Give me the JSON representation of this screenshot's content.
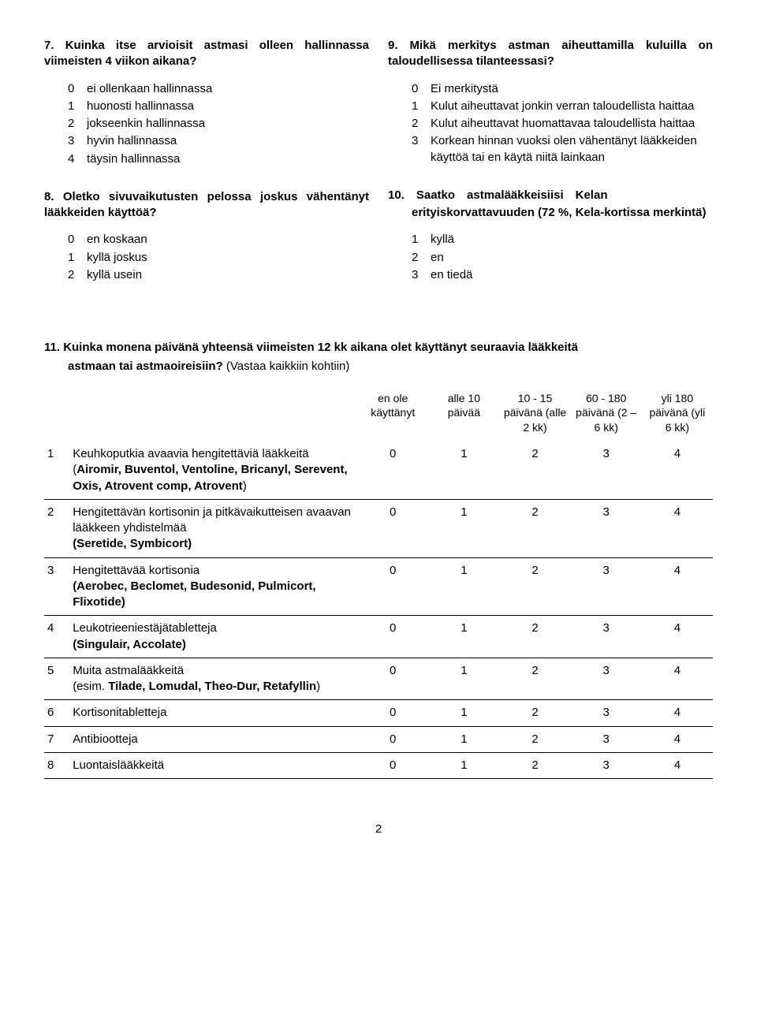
{
  "left": {
    "q7": {
      "title": "7. Kuinka itse arvioisit astmasi olleen hallinnassa viimeisten 4 viikon aikana?",
      "opts": [
        {
          "n": "0",
          "t": "ei ollenkaan hallinnassa"
        },
        {
          "n": "1",
          "t": "huonosti hallinnassa"
        },
        {
          "n": "2",
          "t": "jokseenkin hallinnassa"
        },
        {
          "n": "3",
          "t": "hyvin hallinnassa"
        },
        {
          "n": "4",
          "t": "täysin hallinnassa"
        }
      ]
    },
    "q8": {
      "title": "8. Oletko sivuvaikutusten pelossa joskus vähentänyt lääkkeiden käyttöä?",
      "opts": [
        {
          "n": "0",
          "t": "en koskaan"
        },
        {
          "n": "1",
          "t": "kyllä joskus"
        },
        {
          "n": "2",
          "t": "kyllä usein"
        }
      ]
    }
  },
  "right": {
    "q9": {
      "title": "9. Mikä merkitys astman aiheuttamilla kuluilla on taloudellisessa tilanteessasi?",
      "opts": [
        {
          "n": "0",
          "t": "Ei merkitystä"
        },
        {
          "n": "1",
          "t": "Kulut aiheuttavat jonkin verran taloudellista haittaa"
        },
        {
          "n": "2",
          "t": "Kulut aiheuttavat huomattavaa taloudellista haittaa"
        },
        {
          "n": "3",
          "t": "Korkean hinnan vuoksi olen vähentänyt lääkkeiden käyttöä tai en käytä niitä lainkaan"
        }
      ]
    },
    "q10": {
      "line1": "10. Saatko astmalääkkeisiisi Kelan",
      "line2": "erityiskorvattavuuden (72 %, Kela-kortissa merkintä)",
      "opts": [
        {
          "n": "1",
          "t": "kyllä"
        },
        {
          "n": "2",
          "t": "en"
        },
        {
          "n": "3",
          "t": "en tiedä"
        }
      ]
    }
  },
  "q11": {
    "titleLine1": "11. Kuinka monena päivänä yhteensä viimeisten 12 kk aikana olet käyttänyt seuraavia lääkkeitä",
    "titleIndented": "astmaan tai astmaoireisiin?",
    "titleNormal": " (Vastaa kaikkiin kohtiin)",
    "headers": {
      "c0": "en ole käyttänyt",
      "c1": "alle 10 päivää",
      "c2": "10 - 15 päivänä (alle 2 kk)",
      "c3": "60 - 180 päivänä (2 – 6 kk)",
      "c4": "yli 180 päivänä (yli 6 kk)"
    },
    "rows": [
      {
        "n": "1",
        "desc": "Keuhkoputkia avaavia hengitettäviä lääkkeitä (",
        "bold": "Airomir, Buventol, Ventoline, Bricanyl, Serevent, Oxis, Atrovent comp, Atrovent",
        "tail": ")",
        "v": [
          "0",
          "1",
          "2",
          "3",
          "4"
        ]
      },
      {
        "n": "2",
        "desc": "Hengitettävän kortisonin ja pitkävaikutteisen avaavan lääkkeen yhdistelmää",
        "bold": "",
        "boldLine": "(Seretide, Symbicort)",
        "v": [
          "0",
          "1",
          "2",
          "3",
          "4"
        ]
      },
      {
        "n": "3",
        "desc": "Hengitettävää kortisonia",
        "bold": "",
        "boldLine": "(Aerobec, Beclomet, Budesonid, Pulmicort, Flixotide)",
        "v": [
          "0",
          "1",
          "2",
          "3",
          "4"
        ]
      },
      {
        "n": "4",
        "desc": "Leukotrieeniestäjätabletteja",
        "bold": "",
        "boldLine": "(Singulair, Accolate)",
        "v": [
          "0",
          "1",
          "2",
          "3",
          "4"
        ]
      },
      {
        "n": "5",
        "desc": "Muita astmalääkkeitä",
        "bold": "",
        "tailLine": "(esim. ",
        "tailBold": "Tilade, Lomudal, Theo-Dur, Retafyllin",
        "tailClose": ")",
        "v": [
          "0",
          "1",
          "2",
          "3",
          "4"
        ]
      },
      {
        "n": "6",
        "desc": "Kortisonitabletteja",
        "v": [
          "0",
          "1",
          "2",
          "3",
          "4"
        ]
      },
      {
        "n": "7",
        "desc": "Antibiootteja",
        "v": [
          "0",
          "1",
          "2",
          "3",
          "4"
        ]
      },
      {
        "n": "8",
        "desc": "Luontaislääkkeitä",
        "v": [
          "0",
          "1",
          "2",
          "3",
          "4"
        ]
      }
    ]
  },
  "pageNumber": "2"
}
